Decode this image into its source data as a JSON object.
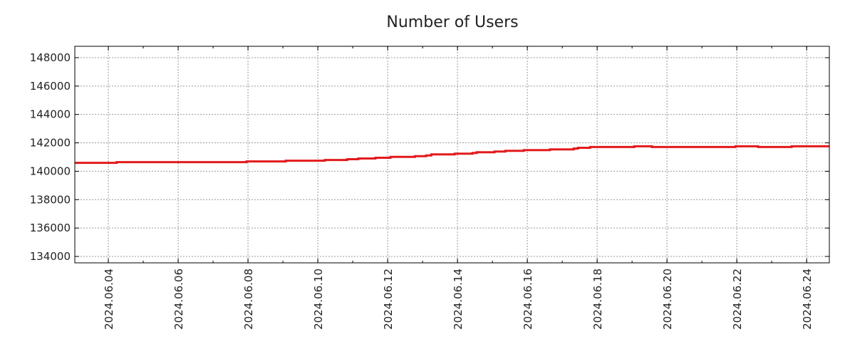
{
  "chart_data": {
    "type": "line",
    "title": "Number of Users",
    "xlabel": "",
    "ylabel": "",
    "x_units": "day of June 2024",
    "xlim": [
      3.04,
      24.65
    ],
    "ylim": [
      133550,
      148800
    ],
    "grid": true,
    "line_color": "#e31a1c",
    "yticks": [
      134000,
      136000,
      138000,
      140000,
      142000,
      144000,
      146000,
      148000
    ],
    "ytick_labels": [
      "134000",
      "136000",
      "138000",
      "140000",
      "142000",
      "144000",
      "146000",
      "148000"
    ],
    "xticks": [
      4,
      6,
      8,
      10,
      12,
      14,
      16,
      18,
      20,
      22,
      24
    ],
    "xtick_labels": [
      "2024.06.04",
      "2024.06.06",
      "2024.06.08",
      "2024.06.10",
      "2024.06.12",
      "2024.06.14",
      "2024.06.16",
      "2024.06.18",
      "2024.06.20",
      "2024.06.22",
      "2024.06.24"
    ],
    "series": [
      {
        "name": "Number of Users",
        "step": "post",
        "x": [
          3.04,
          4.24,
          7.96,
          9.08,
          10.2,
          10.84,
          11.16,
          11.65,
          12.08,
          12.78,
          13.1,
          13.25,
          13.92,
          14.43,
          14.55,
          15.06,
          15.37,
          15.9,
          16.65,
          17.33,
          17.45,
          17.8,
          19.06,
          19.57,
          21.96,
          22.61,
          23.57,
          24.65
        ],
        "y": [
          140590,
          140640,
          140690,
          140740,
          140790,
          140850,
          140900,
          140950,
          141010,
          141060,
          141110,
          141190,
          141240,
          141290,
          141340,
          141390,
          141440,
          141490,
          141540,
          141600,
          141650,
          141710,
          141760,
          141710,
          141760,
          141710,
          141760,
          141760
        ]
      }
    ]
  }
}
